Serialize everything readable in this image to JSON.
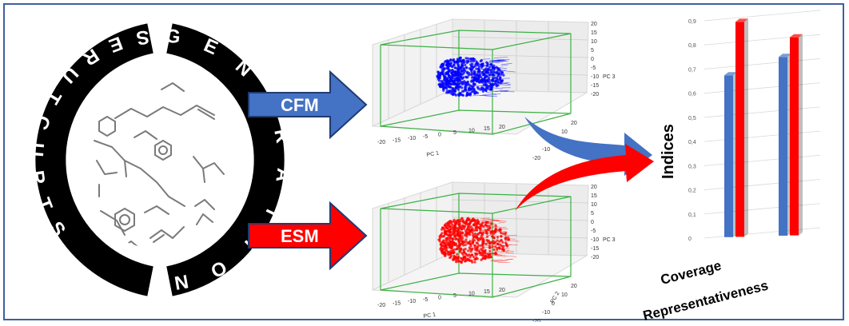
{
  "ring": {
    "left_word": "STRUCTURES",
    "right_word": "GENERATION"
  },
  "arrows": {
    "top_label": "CFM",
    "bottom_label": "ESM",
    "top_color": "#4472c4",
    "bottom_color": "#ff0000"
  },
  "plots": {
    "top": {
      "color": "#0000ff",
      "x_ticks": [
        "-20",
        "-15",
        "-10",
        "-5",
        "0",
        "5",
        "10",
        "15",
        "20"
      ],
      "z_ticks": [
        "20",
        "15",
        "10",
        "5",
        "0",
        "-5",
        "-10",
        "-15",
        "-20"
      ],
      "y_ticks": [
        "20",
        "10",
        "0",
        "-10",
        "-20"
      ],
      "x_label": "PC 1",
      "z_label": "PC 3"
    },
    "bottom": {
      "color": "#ff0000",
      "x_ticks": [
        "-20",
        "-15",
        "-10",
        "-5",
        "0",
        "5",
        "10",
        "15",
        "20"
      ],
      "z_ticks": [
        "20",
        "15",
        "10",
        "5",
        "0",
        "-5",
        "-10",
        "-15",
        "-20"
      ],
      "y_ticks": [
        "20",
        "10",
        "0",
        "-10",
        "-20"
      ],
      "x_label": "PC 1",
      "y_label": "PC 2",
      "z_label": "PC 3"
    }
  },
  "chart_data": {
    "type": "bar",
    "categories": [
      "Coverage",
      "Representativeness"
    ],
    "series": [
      {
        "color": "#4472c4",
        "values": [
          0.67,
          0.74
        ]
      },
      {
        "color": "#ff0000",
        "values": [
          0.89,
          0.82
        ]
      }
    ],
    "ylabel": "Indices",
    "yticks": [
      "0",
      "0,1",
      "0,2",
      "0,3",
      "0,4",
      "0,5",
      "0,6",
      "0,7",
      "0,8",
      "0,9"
    ],
    "ylim": [
      0,
      0.9
    ],
    "grid": true
  }
}
